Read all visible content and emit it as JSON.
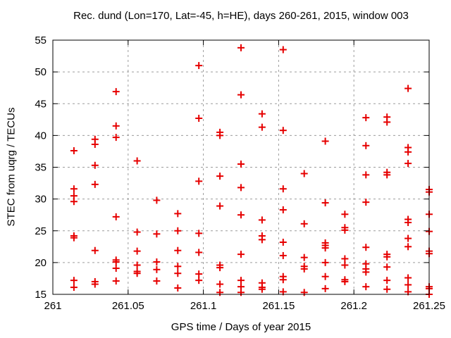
{
  "title": "Rec. dund (Lon=170, Lat=-45, h=HE), days 260-261, 2015, window 003",
  "chart_data": {
    "type": "scatter",
    "title": "Rec. dund (Lon=170, Lat=-45, h=HE), days 260-261, 2015, window 003",
    "xlabel": "GPS time / Days of year 2015",
    "ylabel": "STEC from uqrg / TECUs",
    "xlim": [
      261,
      261.25
    ],
    "ylim": [
      15,
      55
    ],
    "x_ticks": [
      261,
      261.05,
      261.1,
      261.15,
      261.2,
      261.25
    ],
    "x_tick_labels": [
      "261",
      "261.05",
      "261.1",
      "261.15",
      "261.2",
      "261.25"
    ],
    "y_ticks": [
      15,
      20,
      25,
      30,
      35,
      40,
      45,
      50,
      55
    ],
    "y_tick_labels": [
      "15",
      "20",
      "25",
      "30",
      "35",
      "40",
      "45",
      "50",
      "55"
    ],
    "grid": true,
    "legend": "none",
    "marker": {
      "shape": "plus",
      "color": "#e60000",
      "size": 11,
      "stroke": 2
    },
    "grid_color": "#9c9c9c",
    "frame_color": "#000000",
    "series": [
      {
        "name": "STEC",
        "points": [
          [
            261.014,
            37.6
          ],
          [
            261.014,
            31.6
          ],
          [
            261.014,
            30.5
          ],
          [
            261.014,
            29.6
          ],
          [
            261.014,
            24.2
          ],
          [
            261.014,
            23.9
          ],
          [
            261.014,
            17.2
          ],
          [
            261.014,
            16.1
          ],
          [
            261.028,
            39.4
          ],
          [
            261.028,
            38.6
          ],
          [
            261.028,
            35.3
          ],
          [
            261.028,
            32.3
          ],
          [
            261.028,
            21.9
          ],
          [
            261.028,
            17.0
          ],
          [
            261.028,
            16.6
          ],
          [
            261.042,
            46.9
          ],
          [
            261.042,
            41.5
          ],
          [
            261.042,
            39.7
          ],
          [
            261.042,
            27.2
          ],
          [
            261.042,
            20.4
          ],
          [
            261.042,
            20.1
          ],
          [
            261.042,
            19.1
          ],
          [
            261.042,
            17.1
          ],
          [
            261.056,
            36.0
          ],
          [
            261.056,
            24.8
          ],
          [
            261.056,
            21.8
          ],
          [
            261.056,
            19.6
          ],
          [
            261.056,
            18.6
          ],
          [
            261.056,
            18.3
          ],
          [
            261.069,
            29.8
          ],
          [
            261.069,
            24.5
          ],
          [
            261.069,
            20.1
          ],
          [
            261.069,
            18.9
          ],
          [
            261.069,
            17.1
          ],
          [
            261.083,
            27.7
          ],
          [
            261.083,
            25.0
          ],
          [
            261.083,
            21.9
          ],
          [
            261.083,
            19.4
          ],
          [
            261.083,
            18.3
          ],
          [
            261.083,
            16.0
          ],
          [
            261.097,
            51.0
          ],
          [
            261.097,
            42.7
          ],
          [
            261.097,
            32.8
          ],
          [
            261.097,
            24.6
          ],
          [
            261.097,
            21.6
          ],
          [
            261.097,
            18.2
          ],
          [
            261.097,
            17.2
          ],
          [
            261.111,
            40.5
          ],
          [
            261.111,
            40.0
          ],
          [
            261.111,
            33.6
          ],
          [
            261.111,
            28.9
          ],
          [
            261.111,
            19.6
          ],
          [
            261.111,
            19.2
          ],
          [
            261.111,
            16.6
          ],
          [
            261.111,
            15.3
          ],
          [
            261.125,
            53.8
          ],
          [
            261.125,
            46.4
          ],
          [
            261.125,
            35.5
          ],
          [
            261.125,
            31.8
          ],
          [
            261.125,
            27.5
          ],
          [
            261.125,
            21.3
          ],
          [
            261.125,
            17.2
          ],
          [
            261.125,
            16.2
          ],
          [
            261.125,
            15.3
          ],
          [
            261.139,
            43.4
          ],
          [
            261.139,
            41.3
          ],
          [
            261.139,
            26.7
          ],
          [
            261.139,
            24.2
          ],
          [
            261.139,
            23.6
          ],
          [
            261.139,
            16.8
          ],
          [
            261.139,
            16.1
          ],
          [
            261.139,
            15.8
          ],
          [
            261.153,
            53.5
          ],
          [
            261.153,
            40.8
          ],
          [
            261.153,
            31.6
          ],
          [
            261.153,
            28.3
          ],
          [
            261.153,
            23.2
          ],
          [
            261.153,
            21.1
          ],
          [
            261.153,
            17.8
          ],
          [
            261.153,
            17.3
          ],
          [
            261.153,
            15.4
          ],
          [
            261.167,
            34.0
          ],
          [
            261.167,
            26.1
          ],
          [
            261.167,
            20.8
          ],
          [
            261.167,
            19.4
          ],
          [
            261.167,
            19.0
          ],
          [
            261.167,
            15.3
          ],
          [
            261.181,
            39.1
          ],
          [
            261.181,
            29.4
          ],
          [
            261.181,
            23.1
          ],
          [
            261.181,
            22.7
          ],
          [
            261.181,
            22.3
          ],
          [
            261.181,
            20.0
          ],
          [
            261.181,
            17.8
          ],
          [
            261.181,
            15.9
          ],
          [
            261.194,
            27.6
          ],
          [
            261.194,
            25.5
          ],
          [
            261.194,
            25.1
          ],
          [
            261.194,
            20.6
          ],
          [
            261.194,
            19.6
          ],
          [
            261.194,
            17.3
          ],
          [
            261.194,
            17.0
          ],
          [
            261.208,
            42.8
          ],
          [
            261.208,
            38.4
          ],
          [
            261.208,
            33.8
          ],
          [
            261.208,
            29.5
          ],
          [
            261.208,
            22.4
          ],
          [
            261.208,
            19.8
          ],
          [
            261.208,
            19.0
          ],
          [
            261.208,
            18.5
          ],
          [
            261.208,
            16.2
          ],
          [
            261.222,
            42.9
          ],
          [
            261.222,
            42.1
          ],
          [
            261.222,
            34.2
          ],
          [
            261.222,
            33.8
          ],
          [
            261.222,
            21.3
          ],
          [
            261.222,
            20.9
          ],
          [
            261.222,
            19.3
          ],
          [
            261.222,
            17.2
          ],
          [
            261.222,
            15.8
          ],
          [
            261.236,
            47.4
          ],
          [
            261.236,
            38.1
          ],
          [
            261.236,
            37.4
          ],
          [
            261.236,
            35.6
          ],
          [
            261.236,
            26.8
          ],
          [
            261.236,
            26.3
          ],
          [
            261.236,
            23.8
          ],
          [
            261.236,
            22.5
          ],
          [
            261.236,
            17.6
          ],
          [
            261.236,
            16.5
          ],
          [
            261.236,
            15.4
          ],
          [
            261.25,
            31.5
          ],
          [
            261.25,
            31.1
          ],
          [
            261.25,
            27.6
          ],
          [
            261.25,
            24.9
          ],
          [
            261.25,
            21.8
          ],
          [
            261.25,
            21.4
          ],
          [
            261.25,
            16.2
          ],
          [
            261.25,
            15.9
          ],
          [
            261.25,
            15.0
          ]
        ]
      }
    ]
  }
}
